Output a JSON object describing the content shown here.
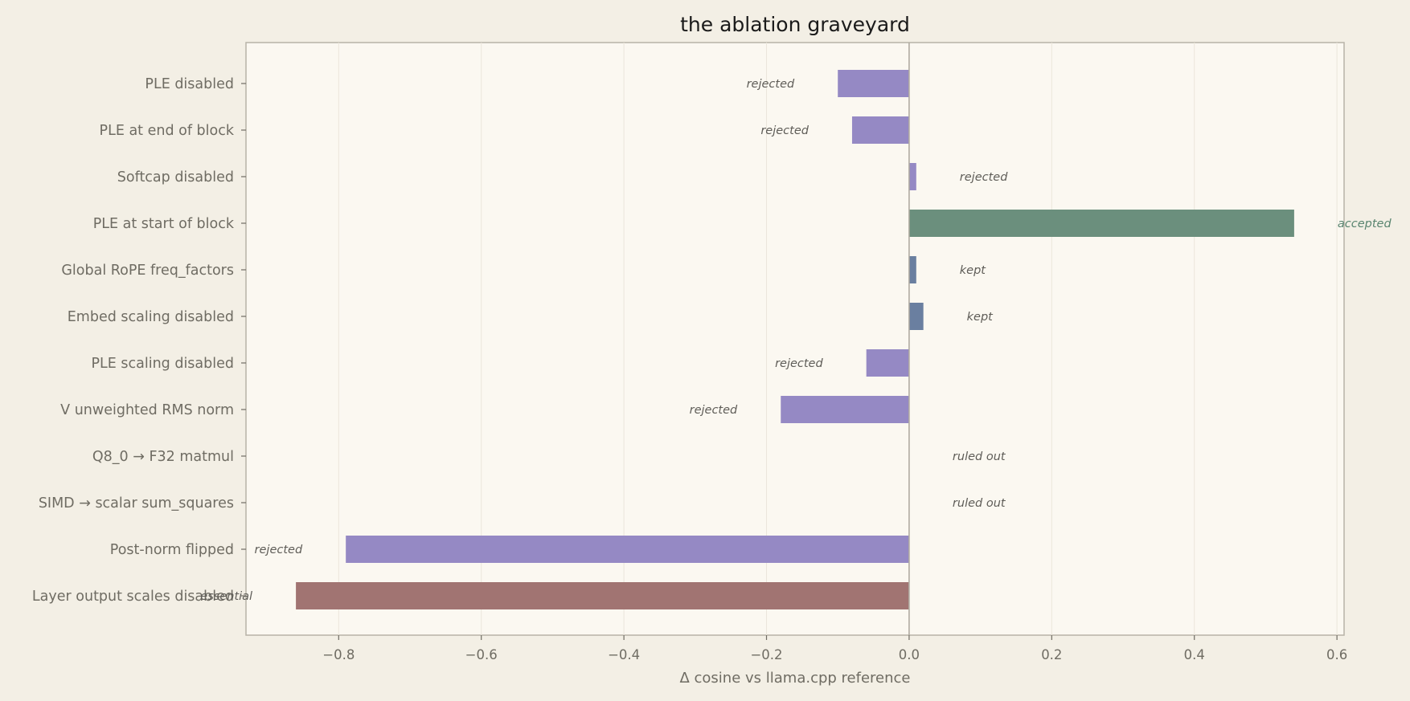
{
  "chart_data": {
    "type": "bar",
    "orientation": "horizontal",
    "title": "the ablation graveyard",
    "xlabel": "Δ cosine vs llama.cpp reference",
    "ylabel": "",
    "xlim": [
      -0.93,
      0.61
    ],
    "xticks": [
      -0.8,
      -0.6,
      -0.4,
      -0.2,
      0.0,
      0.2,
      0.4,
      0.6
    ],
    "xtick_labels": [
      "−0.8",
      "−0.6",
      "−0.4",
      "−0.2",
      "0.0",
      "0.2",
      "0.4",
      "0.6"
    ],
    "grid": "x-axis vertical lines",
    "categories": [
      "PLE disabled",
      "PLE at end of block",
      "Softcap disabled",
      "PLE at start of block",
      "Global RoPE freq_factors",
      "Embed scaling disabled",
      "PLE scaling disabled",
      "V unweighted RMS norm",
      "Q8_0 → F32 matmul",
      "SIMD → scalar sum_squares",
      "Post-norm flipped",
      "Layer output scales disabled"
    ],
    "values": [
      -0.1,
      -0.08,
      0.01,
      0.54,
      0.01,
      0.02,
      -0.06,
      -0.18,
      0.0,
      0.0,
      -0.79,
      -0.86
    ],
    "statuses": [
      "rejected",
      "rejected",
      "rejected",
      "accepted",
      "kept",
      "kept",
      "rejected",
      "rejected",
      "ruled out",
      "ruled out",
      "rejected",
      "essential"
    ]
  },
  "colors": {
    "page_background": "#f3efe5",
    "plot_background": "#fbf8f1",
    "rejected": "#9589c4",
    "accepted": "#6b8f7d",
    "kept": "#6a7fa0",
    "essential": "#a17472",
    "ruled out": "#9589c4",
    "status_text": "#5f5d58",
    "accepted_text": "#5a8570",
    "axis_text": "#6f6c63",
    "spine": "#b8b3a8",
    "grid": "#ebe6db",
    "zero_line": "#b0aba1"
  }
}
